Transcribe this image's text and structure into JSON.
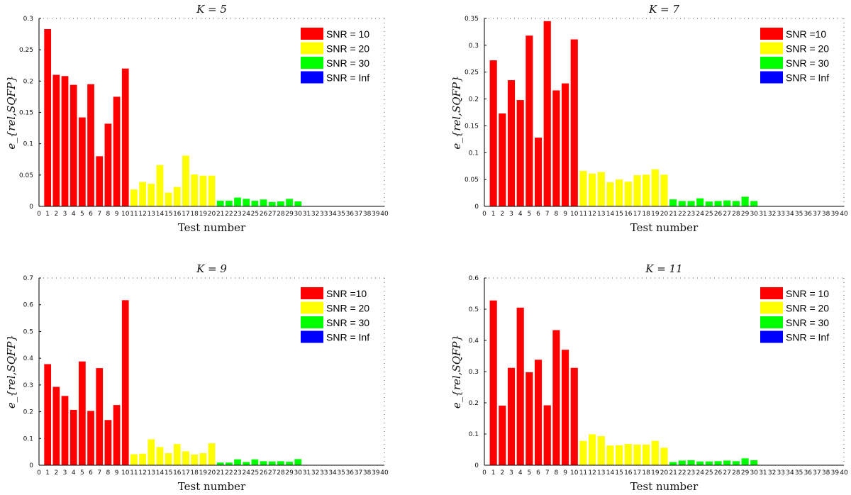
{
  "chart_data": [
    {
      "type": "bar",
      "title": "K = 5",
      "xlabel": "Test number",
      "ylabel": "e_{rel,SQFP}",
      "xlim": [
        0,
        40
      ],
      "ylim": [
        0,
        0.3
      ],
      "y_ticks": [
        "0",
        "0.05",
        "0.1",
        "0.15",
        "0.2",
        "0.25",
        "0.3"
      ],
      "x_ticks": [
        "0",
        "1",
        "2",
        "3",
        "4",
        "5",
        "6",
        "7",
        "8",
        "9",
        "10",
        "11",
        "12",
        "13",
        "14",
        "15",
        "16",
        "17",
        "18",
        "19",
        "20",
        "21",
        "22",
        "23",
        "24",
        "25",
        "26",
        "27",
        "28",
        "29",
        "30",
        "31",
        "32",
        "33",
        "34",
        "35",
        "36",
        "37",
        "38",
        "39",
        "40"
      ],
      "legend": [
        {
          "label": "SNR = 10",
          "color": "#ff0000"
        },
        {
          "label": "SNR = 20",
          "color": "#ffff00"
        },
        {
          "label": "SNR = 30",
          "color": "#00ff00"
        },
        {
          "label": "SNR = Inf",
          "color": "#0000ff"
        }
      ],
      "series": [
        {
          "name": "SNR = 10",
          "color": "#ff0000",
          "x": [
            1,
            2,
            3,
            4,
            5,
            6,
            7,
            8,
            9,
            10
          ],
          "values": [
            0.283,
            0.21,
            0.208,
            0.194,
            0.142,
            0.195,
            0.08,
            0.132,
            0.175,
            0.22
          ]
        },
        {
          "name": "SNR = 20",
          "color": "#ffff00",
          "x": [
            11,
            12,
            13,
            14,
            15,
            16,
            17,
            18,
            19,
            20
          ],
          "values": [
            0.027,
            0.039,
            0.036,
            0.066,
            0.022,
            0.031,
            0.081,
            0.051,
            0.049,
            0.049
          ]
        },
        {
          "name": "SNR = 30",
          "color": "#00ff00",
          "x": [
            21,
            22,
            23,
            24,
            25,
            26,
            27,
            28,
            29,
            30
          ],
          "values": [
            0.009,
            0.009,
            0.014,
            0.012,
            0.009,
            0.011,
            0.007,
            0.008,
            0.012,
            0.008
          ]
        },
        {
          "name": "SNR = Inf",
          "color": "#0000ff",
          "x": [
            31,
            32,
            33,
            34,
            35,
            36,
            37,
            38,
            39,
            40
          ],
          "values": [
            0,
            0,
            0,
            0,
            0,
            0,
            0,
            0,
            0,
            0
          ]
        }
      ]
    },
    {
      "type": "bar",
      "title": "K = 7",
      "xlabel": "Test number",
      "ylabel": "e_{rel,SQFP}",
      "xlim": [
        0,
        40
      ],
      "ylim": [
        0,
        0.35
      ],
      "y_ticks": [
        "0",
        "0.05",
        "0.1",
        "0.15",
        "0.2",
        "0.25",
        "0.3",
        "0.35"
      ],
      "x_ticks": [
        "0",
        "1",
        "2",
        "3",
        "4",
        "5",
        "6",
        "7",
        "8",
        "9",
        "10",
        "11",
        "12",
        "13",
        "14",
        "15",
        "16",
        "17",
        "18",
        "19",
        "20",
        "21",
        "22",
        "23",
        "24",
        "25",
        "26",
        "27",
        "28",
        "29",
        "30",
        "31",
        "32",
        "33",
        "34",
        "35",
        "36",
        "37",
        "38",
        "39",
        "40"
      ],
      "legend": [
        {
          "label": "SNR =10",
          "color": "#ff0000"
        },
        {
          "label": "SNR = 20",
          "color": "#ffff00"
        },
        {
          "label": "SNR = 30",
          "color": "#00ff00"
        },
        {
          "label": "SNR = Inf",
          "color": "#0000ff"
        }
      ],
      "series": [
        {
          "name": "SNR =10",
          "color": "#ff0000",
          "x": [
            1,
            2,
            3,
            4,
            5,
            6,
            7,
            8,
            9,
            10
          ],
          "values": [
            0.272,
            0.173,
            0.235,
            0.198,
            0.318,
            0.128,
            0.345,
            0.216,
            0.229,
            0.311
          ]
        },
        {
          "name": "SNR = 20",
          "color": "#ffff00",
          "x": [
            11,
            12,
            13,
            14,
            15,
            16,
            17,
            18,
            19,
            20
          ],
          "values": [
            0.066,
            0.061,
            0.064,
            0.045,
            0.05,
            0.046,
            0.058,
            0.059,
            0.069,
            0.059
          ]
        },
        {
          "name": "SNR = 30",
          "color": "#00ff00",
          "x": [
            21,
            22,
            23,
            24,
            25,
            26,
            27,
            28,
            29,
            30
          ],
          "values": [
            0.013,
            0.01,
            0.01,
            0.015,
            0.009,
            0.01,
            0.011,
            0.01,
            0.018,
            0.01
          ]
        },
        {
          "name": "SNR = Inf",
          "color": "#0000ff",
          "x": [
            31,
            32,
            33,
            34,
            35,
            36,
            37,
            38,
            39,
            40
          ],
          "values": [
            0,
            0,
            0,
            0,
            0,
            0,
            0,
            0,
            0,
            0
          ]
        }
      ]
    },
    {
      "type": "bar",
      "title": "K = 9",
      "xlabel": "Test number",
      "ylabel": "e_{rel,SQFP}",
      "xlim": [
        0,
        40
      ],
      "ylim": [
        0,
        0.7
      ],
      "y_ticks": [
        "0",
        "0.1",
        "0.2",
        "0.3",
        "0.4",
        "0.5",
        "0.6",
        "0.7"
      ],
      "x_ticks": [
        "0",
        "1",
        "2",
        "3",
        "4",
        "5",
        "6",
        "7",
        "8",
        "9",
        "10",
        "11",
        "12",
        "13",
        "14",
        "15",
        "16",
        "17",
        "18",
        "19",
        "20",
        "21",
        "22",
        "23",
        "24",
        "25",
        "26",
        "27",
        "28",
        "29",
        "30",
        "31",
        "32",
        "33",
        "34",
        "35",
        "36",
        "37",
        "38",
        "39",
        "40"
      ],
      "legend": [
        {
          "label": "SNR =10",
          "color": "#ff0000"
        },
        {
          "label": "SNR = 20",
          "color": "#ffff00"
        },
        {
          "label": "SNR = 30",
          "color": "#00ff00"
        },
        {
          "label": "SNR = Inf",
          "color": "#0000ff"
        }
      ],
      "series": [
        {
          "name": "SNR =10",
          "color": "#ff0000",
          "x": [
            1,
            2,
            3,
            4,
            5,
            6,
            7,
            8,
            9,
            10
          ],
          "values": [
            0.378,
            0.293,
            0.259,
            0.207,
            0.388,
            0.203,
            0.363,
            0.169,
            0.225,
            0.617
          ]
        },
        {
          "name": "SNR = 20",
          "color": "#ffff00",
          "x": [
            11,
            12,
            13,
            14,
            15,
            16,
            17,
            18,
            19,
            20
          ],
          "values": [
            0.041,
            0.043,
            0.097,
            0.068,
            0.045,
            0.079,
            0.052,
            0.04,
            0.045,
            0.082
          ]
        },
        {
          "name": "SNR = 30",
          "color": "#00ff00",
          "x": [
            21,
            22,
            23,
            24,
            25,
            26,
            27,
            28,
            29,
            30
          ],
          "values": [
            0.01,
            0.01,
            0.022,
            0.012,
            0.022,
            0.015,
            0.014,
            0.015,
            0.013,
            0.023
          ]
        },
        {
          "name": "SNR = Inf",
          "color": "#0000ff",
          "x": [
            31,
            32,
            33,
            34,
            35,
            36,
            37,
            38,
            39,
            40
          ],
          "values": [
            0,
            0,
            0,
            0,
            0,
            0,
            0,
            0,
            0,
            0
          ]
        }
      ]
    },
    {
      "type": "bar",
      "title": "K = 11",
      "xlabel": "Test number",
      "ylabel": "e_{rel,SQFP}",
      "xlim": [
        0,
        40
      ],
      "ylim": [
        0,
        0.6
      ],
      "y_ticks": [
        "0",
        "0.1",
        "0.2",
        "0.3",
        "0.4",
        "0.5",
        "0.6"
      ],
      "x_ticks": [
        "0",
        "1",
        "2",
        "3",
        "4",
        "5",
        "6",
        "7",
        "8",
        "9",
        "10",
        "11",
        "12",
        "13",
        "14",
        "15",
        "16",
        "17",
        "18",
        "19",
        "20",
        "21",
        "22",
        "23",
        "24",
        "25",
        "26",
        "27",
        "28",
        "29",
        "30",
        "31",
        "32",
        "33",
        "34",
        "35",
        "36",
        "37",
        "38",
        "39",
        "40"
      ],
      "legend": [
        {
          "label": "SNR = 10",
          "color": "#ff0000"
        },
        {
          "label": "SNR = 20",
          "color": "#ffff00"
        },
        {
          "label": "SNR = 30",
          "color": "#00ff00"
        },
        {
          "label": "SNR = Inf",
          "color": "#0000ff"
        }
      ],
      "series": [
        {
          "name": "SNR = 10",
          "color": "#ff0000",
          "x": [
            1,
            2,
            3,
            4,
            5,
            6,
            7,
            8,
            9,
            10
          ],
          "values": [
            0.528,
            0.191,
            0.312,
            0.505,
            0.298,
            0.338,
            0.192,
            0.433,
            0.37,
            0.312
          ]
        },
        {
          "name": "SNR = 20",
          "color": "#ffff00",
          "x": [
            11,
            12,
            13,
            14,
            15,
            16,
            17,
            18,
            19,
            20
          ],
          "values": [
            0.078,
            0.099,
            0.093,
            0.063,
            0.064,
            0.068,
            0.066,
            0.066,
            0.078,
            0.056
          ]
        },
        {
          "name": "SNR = 30",
          "color": "#00ff00",
          "x": [
            21,
            22,
            23,
            24,
            25,
            26,
            27,
            28,
            29,
            30
          ],
          "values": [
            0.01,
            0.015,
            0.016,
            0.012,
            0.012,
            0.013,
            0.015,
            0.013,
            0.022,
            0.016
          ]
        },
        {
          "name": "SNR = Inf",
          "color": "#0000ff",
          "x": [
            31,
            32,
            33,
            34,
            35,
            36,
            37,
            38,
            39,
            40
          ],
          "values": [
            0,
            0,
            0,
            0,
            0,
            0,
            0,
            0,
            0,
            0
          ]
        }
      ]
    }
  ]
}
